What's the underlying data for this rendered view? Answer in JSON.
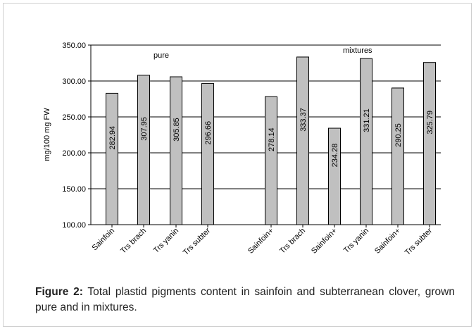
{
  "chart_data": {
    "type": "bar",
    "ylabel": "mg/100 mg FW",
    "ylim": [
      100,
      350
    ],
    "yticks": [
      "100.00",
      "150.00",
      "200.00",
      "250.00",
      "300.00",
      "350.00"
    ],
    "grid": true,
    "categories": [
      "Sainfoin",
      "Trs brach",
      "Trs yanin",
      "Trs subter",
      "Sainfoin+",
      "Trs brach",
      "Sainfoin+",
      "Trs yanin",
      "Sainfoin+",
      "Trs subter"
    ],
    "values": [
      282.94,
      307.95,
      305.85,
      296.66,
      278.14,
      333.37,
      234.28,
      331.21,
      290.25,
      325.79
    ],
    "value_labels": [
      "282.94",
      "307.95",
      "305.85",
      "296.66",
      "278.14",
      "333.37",
      "234.28",
      "331.21",
      "290.25",
      "325.79"
    ],
    "group_labels": [
      "pure",
      "mixtures"
    ],
    "bar_color": "#c0c0c0"
  },
  "caption": {
    "label": "Figure 2:",
    "text": " Total plastid pigments content in sainfoin and subterranean clover, grown pure and in mixtures."
  }
}
